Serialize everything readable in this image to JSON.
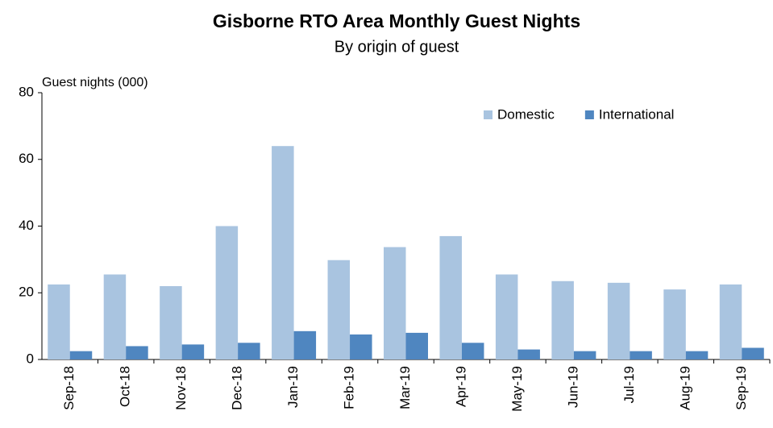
{
  "chart_data": {
    "type": "bar",
    "title": "Gisborne RTO Area Monthly Guest Nights",
    "subtitle": "By origin  of guest",
    "y_label": "Guest nights (000)",
    "categories": [
      "Sep-18",
      "Oct-18",
      "Nov-18",
      "Dec-18",
      "Jan-19",
      "Feb-19",
      "Mar-19",
      "Apr-19",
      "May-19",
      "Jun-19",
      "Jul-19",
      "Aug-19",
      "Sep-19"
    ],
    "series": [
      {
        "name": "Domestic",
        "color": "#a9c4e0",
        "values": [
          22.5,
          25.5,
          22,
          40,
          64,
          29.8,
          33.7,
          37,
          25.5,
          23.5,
          23,
          21,
          22.5
        ]
      },
      {
        "name": "International",
        "color": "#4f86c0",
        "values": [
          2.5,
          4,
          4.5,
          5,
          8.5,
          7.5,
          8,
          5,
          3,
          2.5,
          2.5,
          2.5,
          3.5
        ]
      }
    ],
    "ylim": [
      0,
      80
    ],
    "yticks": [
      0,
      20,
      40,
      60,
      80
    ],
    "grid": false,
    "legend": "top-right"
  }
}
